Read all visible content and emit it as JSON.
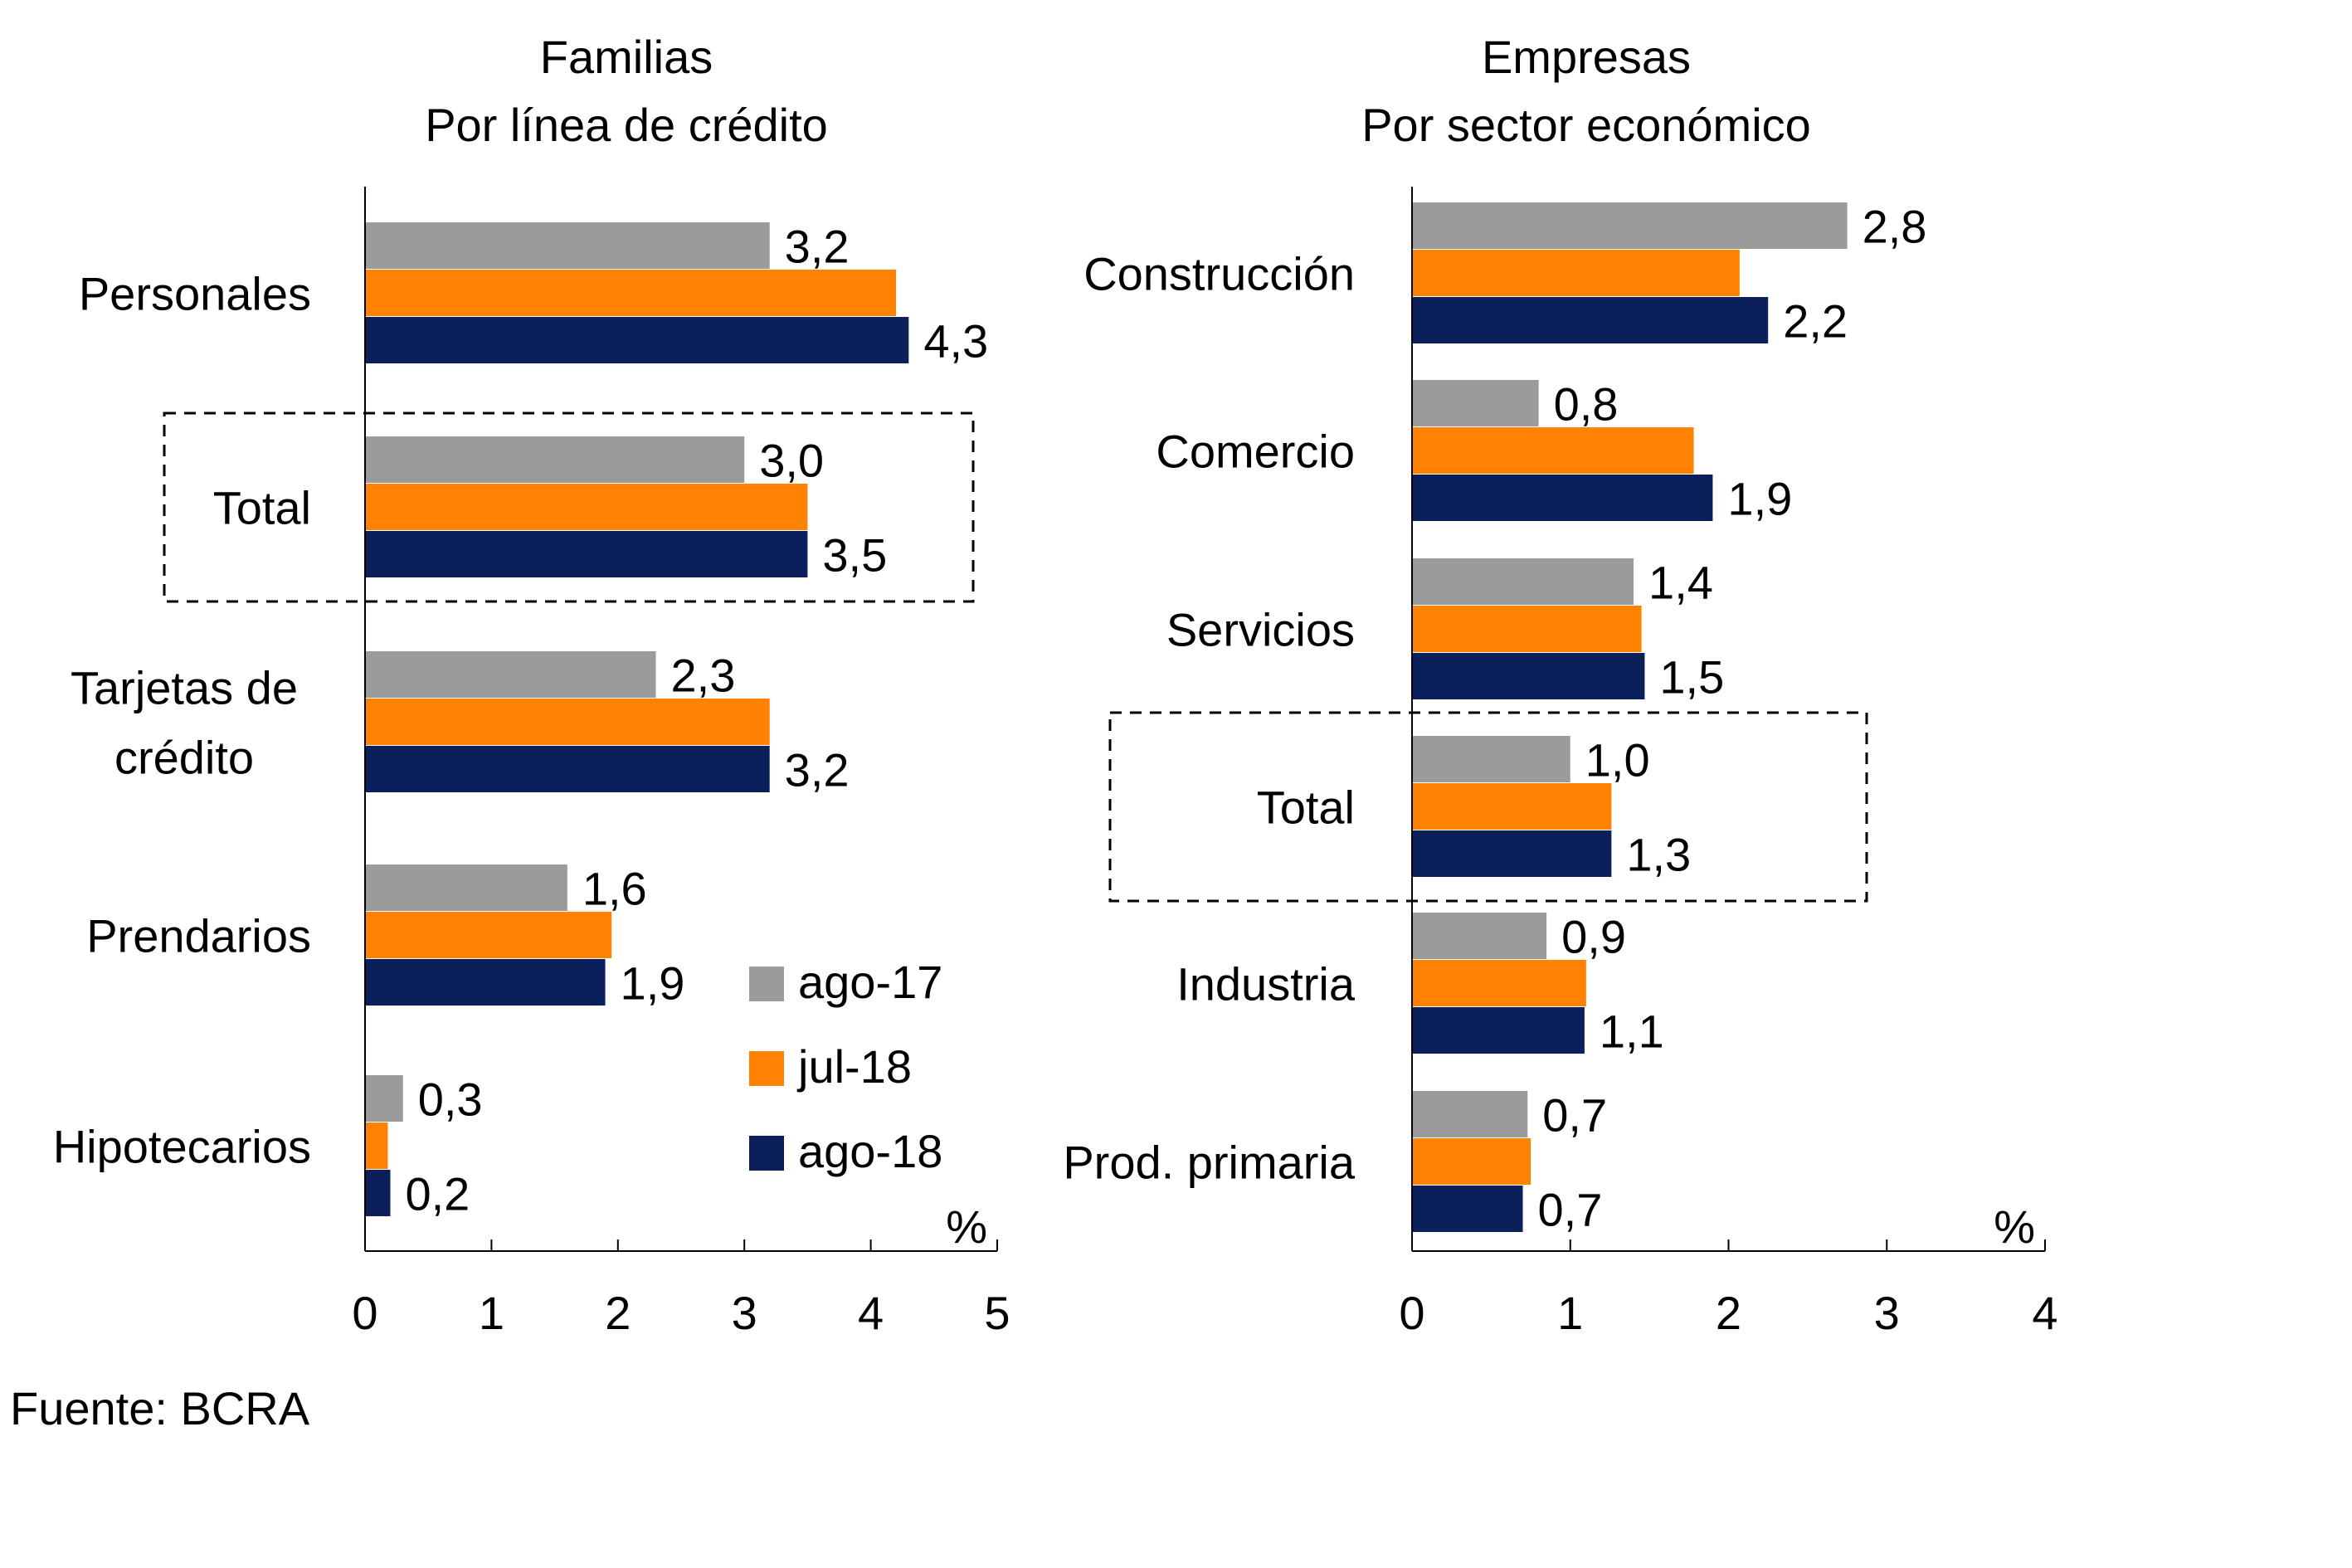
{
  "source_label": "Fuente: BCRA",
  "colors": {
    "ago-17": "#9B9B9B",
    "jul-18": "#FF8200",
    "ago-18": "#0B1F5B"
  },
  "chart_data": [
    {
      "type": "bar",
      "orientation": "horizontal",
      "title": "Familias",
      "subtitle": "Por línea de crédito",
      "unit_label": "%",
      "xlim": [
        0,
        5
      ],
      "ticks": [
        "0",
        "1",
        "2",
        "3",
        "4",
        "5"
      ],
      "categories": [
        "Personales",
        "Total",
        "Tarjetas de crédito",
        "Prendarios",
        "Hipotecarios"
      ],
      "highlighted_category": "Total",
      "legend": [
        "ago-17",
        "jul-18",
        "ago-18"
      ],
      "series": [
        {
          "name": "ago-17",
          "values": [
            3.2,
            3.0,
            2.3,
            1.6,
            0.3
          ],
          "labels": [
            "3,2",
            "3,0",
            "2,3",
            "1,6",
            "0,3"
          ]
        },
        {
          "name": "jul-18",
          "values": [
            4.2,
            3.5,
            3.2,
            1.95,
            0.18
          ],
          "labels": [
            "",
            "",
            "",
            "",
            ""
          ]
        },
        {
          "name": "ago-18",
          "values": [
            4.3,
            3.5,
            3.2,
            1.9,
            0.2
          ],
          "labels": [
            "4,3",
            "3,5",
            "3,2",
            "1,9",
            "0,2"
          ]
        }
      ]
    },
    {
      "type": "bar",
      "orientation": "horizontal",
      "title": "Empresas",
      "subtitle": "Por sector económico",
      "unit_label": "%",
      "xlim": [
        0,
        4
      ],
      "ticks": [
        "0",
        "1",
        "2",
        "3",
        "4"
      ],
      "categories": [
        "Construcción",
        "Comercio",
        "Servicios",
        "Total",
        "Industria",
        "Prod. primaria"
      ],
      "highlighted_category": "Total",
      "series": [
        {
          "name": "ago-17",
          "values": [
            2.75,
            0.8,
            1.4,
            1.0,
            0.85,
            0.73
          ],
          "labels": [
            "2,8",
            "0,8",
            "1,4",
            "1,0",
            "0,9",
            "0,7"
          ]
        },
        {
          "name": "jul-18",
          "values": [
            2.07,
            1.78,
            1.45,
            1.26,
            1.1,
            0.75
          ],
          "labels": [
            "",
            "",
            "",
            "",
            "",
            ""
          ]
        },
        {
          "name": "ago-18",
          "values": [
            2.25,
            1.9,
            1.47,
            1.26,
            1.09,
            0.7
          ],
          "labels": [
            "2,2",
            "1,9",
            "1,5",
            "1,3",
            "1,1",
            "0,7"
          ]
        }
      ]
    }
  ]
}
